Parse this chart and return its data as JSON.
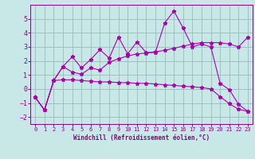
{
  "xlabel": "Windchill (Refroidissement éolien,°C)",
  "xlim": [
    -0.5,
    23.5
  ],
  "ylim": [
    -2.5,
    6.0
  ],
  "yticks": [
    -2,
    -1,
    0,
    1,
    2,
    3,
    4,
    5
  ],
  "xticks": [
    0,
    1,
    2,
    3,
    4,
    5,
    6,
    7,
    8,
    9,
    10,
    11,
    12,
    13,
    14,
    15,
    16,
    17,
    18,
    19,
    20,
    21,
    22,
    23
  ],
  "background_color": "#c8e8e8",
  "grid_color": "#99bbbb",
  "line_color": "#aa00aa",
  "line1_x": [
    0,
    1,
    2,
    3,
    4,
    5,
    6,
    7,
    8,
    9,
    10,
    11,
    12,
    13,
    14,
    15,
    16,
    17,
    18,
    19,
    20,
    21,
    22,
    23
  ],
  "line1_y": [
    -0.6,
    -1.5,
    0.6,
    1.6,
    2.3,
    1.5,
    2.1,
    2.8,
    2.2,
    3.7,
    2.5,
    3.35,
    2.6,
    2.6,
    4.7,
    5.55,
    4.35,
    3.0,
    3.2,
    3.0,
    0.4,
    -0.05,
    -1.1,
    -1.6
  ],
  "line2_x": [
    0,
    1,
    2,
    3,
    4,
    5,
    6,
    7,
    8,
    9,
    10,
    11,
    12,
    13,
    14,
    15,
    16,
    17,
    18,
    19,
    20,
    21,
    22,
    23
  ],
  "line2_y": [
    -0.6,
    -1.5,
    0.6,
    1.6,
    1.2,
    1.05,
    1.5,
    1.35,
    1.9,
    2.15,
    2.35,
    2.5,
    2.55,
    2.65,
    2.75,
    2.9,
    3.05,
    3.2,
    3.3,
    3.3,
    3.3,
    3.2,
    3.0,
    3.7
  ],
  "line3_x": [
    0,
    1,
    2,
    3,
    4,
    5,
    6,
    7,
    8,
    9,
    10,
    11,
    12,
    13,
    14,
    15,
    16,
    17,
    18,
    19,
    20,
    21,
    22,
    23
  ],
  "line3_y": [
    -0.6,
    -1.5,
    0.6,
    0.65,
    0.65,
    0.6,
    0.55,
    0.5,
    0.5,
    0.45,
    0.45,
    0.4,
    0.4,
    0.35,
    0.3,
    0.25,
    0.2,
    0.15,
    0.1,
    0.0,
    -0.55,
    -1.05,
    -1.45,
    -1.6
  ]
}
